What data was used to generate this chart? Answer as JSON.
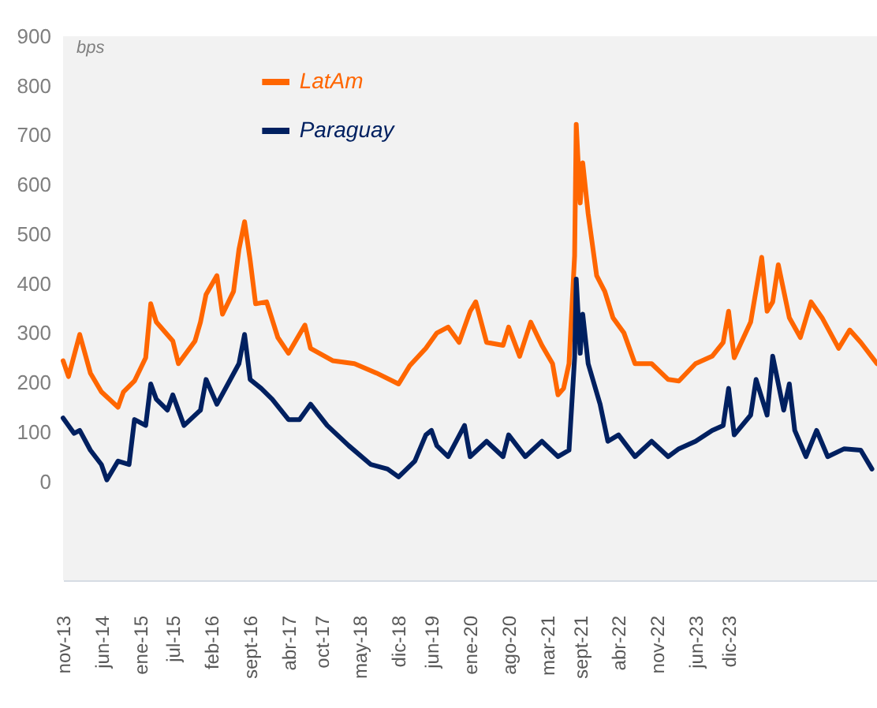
{
  "chart_data": {
    "type": "line",
    "ylabel": "bps",
    "xlim": [
      "2013-11",
      "2026-03"
    ],
    "ylim": [
      -200,
      900
    ],
    "yticks": [
      0,
      100,
      200,
      300,
      400,
      500,
      600,
      700,
      800,
      900
    ],
    "xticks": [
      {
        "value": "2013-11",
        "label": "nov-13"
      },
      {
        "value": "2014-06",
        "label": "jun-14"
      },
      {
        "value": "2015-01",
        "label": "ene-15"
      },
      {
        "value": "2015-07",
        "label": "jul-15"
      },
      {
        "value": "2016-02",
        "label": "feb-16"
      },
      {
        "value": "2016-09",
        "label": "sept-16"
      },
      {
        "value": "2017-04",
        "label": "abr-17"
      },
      {
        "value": "2017-10",
        "label": "oct-17"
      },
      {
        "value": "2018-05",
        "label": "may-18"
      },
      {
        "value": "2018-12",
        "label": "dic-18"
      },
      {
        "value": "2019-06",
        "label": "jun-19"
      },
      {
        "value": "2020-01",
        "label": "ene-20"
      },
      {
        "value": "2020-08",
        "label": "ago-20"
      },
      {
        "value": "2021-03",
        "label": "mar-21"
      },
      {
        "value": "2021-09",
        "label": "sept-21"
      },
      {
        "value": "2022-04",
        "label": "abr-22"
      },
      {
        "value": "2022-11",
        "label": "nov-22"
      },
      {
        "value": "2023-06",
        "label": "jun-23"
      },
      {
        "value": "2023-12",
        "label": "dic-23"
      }
    ],
    "grid": false,
    "legend": "top",
    "marker": "none",
    "line_style": "solid",
    "series": [
      {
        "name": "LatAm",
        "color": "#ff6600",
        "x": [
          "2013-11",
          "2013-12",
          "2014-02",
          "2014-04",
          "2014-06",
          "2014-09",
          "2014-10",
          "2014-12",
          "2015-02",
          "2015-03",
          "2015-04",
          "2015-07",
          "2015-08",
          "2015-11",
          "2015-12",
          "2016-01",
          "2016-03",
          "2016-04",
          "2016-06",
          "2016-07",
          "2016-08",
          "2016-09",
          "2016-10",
          "2016-12",
          "2017-02",
          "2017-04",
          "2017-07",
          "2017-08",
          "2017-12",
          "2018-04",
          "2018-08",
          "2018-12",
          "2019-02",
          "2019-05",
          "2019-07",
          "2019-09",
          "2019-11",
          "2020-01",
          "2020-02",
          "2020-04",
          "2020-07",
          "2020-08",
          "2020-10",
          "2020-12",
          "2021-02",
          "2021-04",
          "2021-05",
          "2021-06",
          "2021-07-01",
          "2021-08-01",
          "2021-08-10",
          "2021-09-01",
          "2021-09-15",
          "2021-10-15",
          "2021-12-01",
          "2022-01-15",
          "2022-03-01",
          "2022-05",
          "2022-07",
          "2022-10",
          "2023-01",
          "2023-03",
          "2023-06",
          "2023-09",
          "2023-11",
          "2023-12",
          "2024-01",
          "2024-04",
          "2024-06",
          "2024-07",
          "2024-08",
          "2024-09",
          "2024-11",
          "2025-01",
          "2025-03",
          "2025-05",
          "2025-08",
          "2025-10",
          "2025-12",
          "2026-03"
        ],
        "values": [
          244,
          212,
          297,
          219,
          181,
          150,
          181,
          203,
          250,
          359,
          322,
          284,
          238,
          284,
          322,
          378,
          416,
          338,
          384,
          469,
          525,
          447,
          359,
          363,
          291,
          259,
          316,
          269,
          244,
          238,
          219,
          197,
          234,
          269,
          300,
          312,
          281,
          344,
          363,
          281,
          275,
          312,
          253,
          322,
          275,
          238,
          175,
          188,
          238,
          456,
          722,
          563,
          644,
          541,
          416,
          384,
          331,
          300,
          238,
          238,
          206,
          203,
          238,
          253,
          281,
          344,
          250,
          322,
          453,
          344,
          363,
          438,
          331,
          291,
          363,
          331,
          269,
          306,
          281,
          238
        ]
      },
      {
        "name": "Paraguay",
        "color": "#002060",
        "x": [
          "2013-11",
          "2014-01",
          "2014-02",
          "2014-04",
          "2014-06",
          "2014-07",
          "2014-09",
          "2014-11",
          "2014-12",
          "2015-02",
          "2015-03",
          "2015-04",
          "2015-06",
          "2015-07",
          "2015-09",
          "2015-12",
          "2016-01",
          "2016-03",
          "2016-05",
          "2016-07",
          "2016-08",
          "2016-09",
          "2016-11",
          "2017-01",
          "2017-04",
          "2017-06",
          "2017-08",
          "2017-11",
          "2018-03",
          "2018-07",
          "2018-10",
          "2018-12",
          "2019-03",
          "2019-05",
          "2019-06",
          "2019-07",
          "2019-09",
          "2019-12",
          "2020-01",
          "2020-04",
          "2020-07",
          "2020-08",
          "2020-11",
          "2021-02",
          "2021-05",
          "2021-07-01",
          "2021-08-01",
          "2021-08-10",
          "2021-09-01",
          "2021-09-15",
          "2021-10-15",
          "2021-12-20",
          "2022-02-01",
          "2022-04",
          "2022-07",
          "2022-10",
          "2023-01",
          "2023-03",
          "2023-06",
          "2023-09",
          "2023-11",
          "2023-12",
          "2024-01",
          "2024-04",
          "2024-05",
          "2024-07",
          "2024-08",
          "2024-10",
          "2024-11",
          "2024-12",
          "2025-02",
          "2025-04",
          "2025-06",
          "2025-09",
          "2025-12",
          "2026-02"
        ],
        "values": [
          128,
          97,
          103,
          63,
          34,
          3,
          41,
          34,
          125,
          113,
          197,
          166,
          144,
          175,
          113,
          144,
          206,
          156,
          197,
          238,
          297,
          206,
          188,
          166,
          125,
          125,
          156,
          113,
          72,
          34,
          25,
          9,
          41,
          94,
          103,
          72,
          50,
          113,
          50,
          81,
          50,
          94,
          50,
          81,
          50,
          63,
          250,
          409,
          259,
          338,
          238,
          156,
          81,
          94,
          50,
          81,
          50,
          66,
          81,
          103,
          113,
          188,
          94,
          134,
          206,
          134,
          253,
          144,
          197,
          103,
          50,
          103,
          50,
          66,
          63,
          25
        ]
      }
    ]
  }
}
